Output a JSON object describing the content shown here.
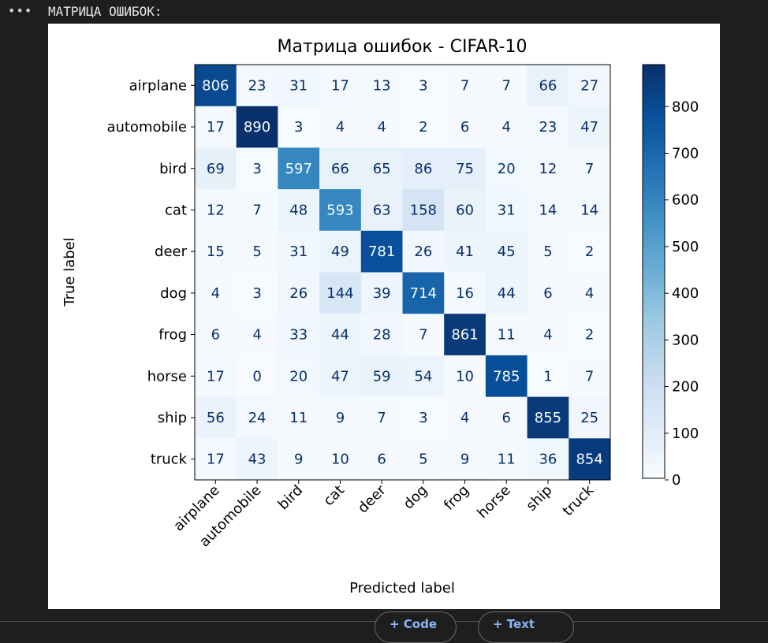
{
  "output": {
    "menu_icon": "ellipsis-icon",
    "heading": "МАТРИЦА ОШИБОК:"
  },
  "toolbar": {
    "add_code": "+ Code",
    "add_text": "+ Text"
  },
  "chart_data": {
    "type": "heatmap",
    "title": "Матрица ошибок - CIFAR-10",
    "xlabel": "Predicted label",
    "ylabel": "True label",
    "labels": [
      "airplane",
      "automobile",
      "bird",
      "cat",
      "deer",
      "dog",
      "frog",
      "horse",
      "ship",
      "truck"
    ],
    "matrix": [
      [
        806,
        23,
        31,
        17,
        13,
        3,
        7,
        7,
        66,
        27
      ],
      [
        17,
        890,
        3,
        4,
        4,
        2,
        6,
        4,
        23,
        47
      ],
      [
        69,
        3,
        597,
        66,
        65,
        86,
        75,
        20,
        12,
        7
      ],
      [
        12,
        7,
        48,
        593,
        63,
        158,
        60,
        31,
        14,
        14
      ],
      [
        15,
        5,
        31,
        49,
        781,
        26,
        41,
        45,
        5,
        2
      ],
      [
        4,
        3,
        26,
        144,
        39,
        714,
        16,
        44,
        6,
        4
      ],
      [
        6,
        4,
        33,
        44,
        28,
        7,
        861,
        11,
        4,
        2
      ],
      [
        17,
        0,
        20,
        47,
        59,
        54,
        10,
        785,
        1,
        7
      ],
      [
        56,
        24,
        11,
        9,
        7,
        3,
        4,
        6,
        855,
        25
      ],
      [
        17,
        43,
        9,
        10,
        6,
        5,
        9,
        11,
        36,
        854
      ]
    ],
    "colormap": "Blues",
    "colorbar": {
      "range": [
        0,
        890
      ],
      "ticks": [
        0,
        100,
        200,
        300,
        400,
        500,
        600,
        700,
        800
      ]
    },
    "text_colors": {
      "dark": "#08306b",
      "light": "#f7fbff"
    }
  }
}
